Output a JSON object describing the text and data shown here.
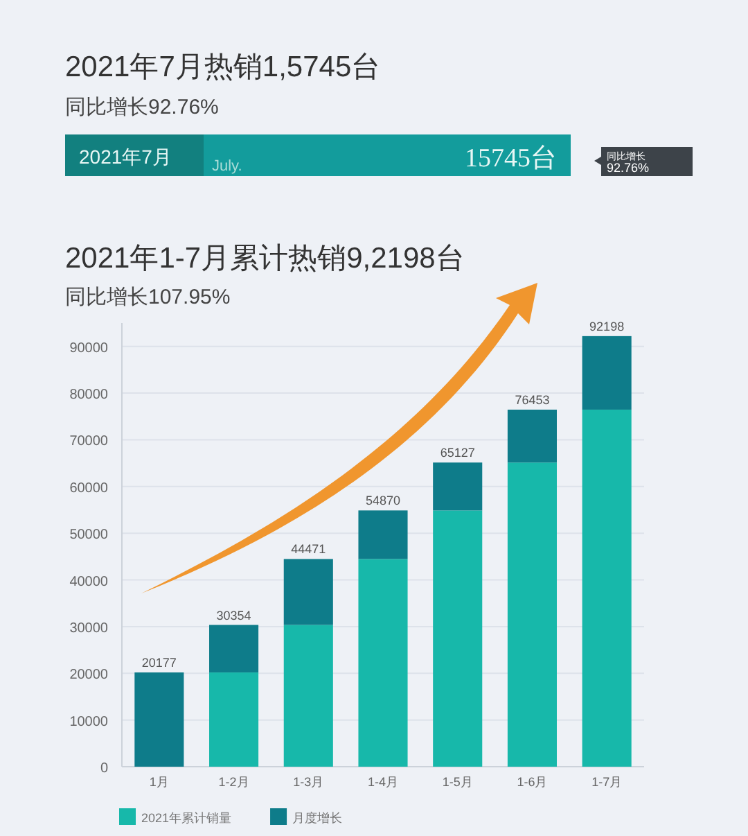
{
  "chart_data": {
    "type": "bar",
    "stacked": true,
    "title": "2021年1-7月累计热销9,2198台",
    "subtitle": "同比增长107.95%",
    "annotations": [
      "2021年7月热销1,5745台",
      "同比增长92.76%",
      "2021年7月",
      "July.",
      "15745台",
      "同比增长",
      "92.76%"
    ],
    "categories": [
      "1月",
      "1-2月",
      "1-3月",
      "1-4月",
      "1-5月",
      "1-6月",
      "1-7月"
    ],
    "series": [
      {
        "name": "2021年累计销量",
        "color": "#17b8aa",
        "values": [
          0,
          20177,
          30354,
          44471,
          54870,
          65127,
          76453
        ]
      },
      {
        "name": "月度增长",
        "color": "#0e7c8a",
        "values": [
          20177,
          10177,
          14117,
          10399,
          10257,
          11326,
          15745
        ]
      }
    ],
    "totals": [
      "20177",
      "30354",
      "44471",
      "54870",
      "65127",
      "76453",
      "92198"
    ],
    "ylim": [
      0,
      95000
    ],
    "yticks": [
      0,
      10000,
      20000,
      30000,
      40000,
      50000,
      60000,
      70000,
      80000,
      90000
    ],
    "grid": "y",
    "legend": "bottom"
  }
}
